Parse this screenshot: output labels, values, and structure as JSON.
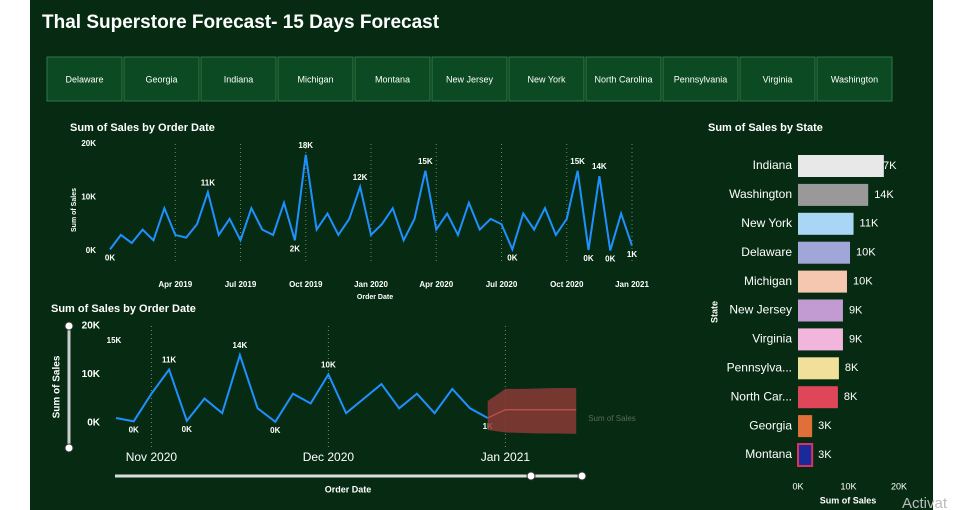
{
  "header": {
    "title": "Thal Superstore Forecast- 15 Days Forecast"
  },
  "filters": [
    "Delaware",
    "Georgia",
    "Indiana",
    "Michigan",
    "Montana",
    "New Jersey",
    "New York",
    "North Carolina",
    "Pennsylvania",
    "Virginia",
    "Washington"
  ],
  "watermark": "Activat",
  "chart_data": [
    {
      "type": "line",
      "title": "Sum of Sales by Order Date",
      "x_label": "Order Date",
      "y_label": "Sum of Sales",
      "categories": [
        null,
        null,
        null,
        null,
        null,
        null,
        "Apr 2019",
        null,
        null,
        null,
        null,
        null,
        "Jul 2019",
        null,
        null,
        null,
        null,
        null,
        "Oct 2019",
        null,
        null,
        null,
        null,
        null,
        "Jan 2020",
        null,
        null,
        null,
        null,
        null,
        "Apr 2020",
        null,
        null,
        null,
        null,
        null,
        "Jul 2020",
        null,
        null,
        null,
        null,
        null,
        "Oct 2020",
        null,
        null,
        null,
        null,
        null,
        "Jan 2021"
      ],
      "series": [
        {
          "color": "#1e90ff",
          "values": [
            300,
            3000,
            1500,
            4000,
            2000,
            8000,
            3000,
            2500,
            5000,
            11000,
            3000,
            6000,
            2000,
            8000,
            4000,
            3000,
            9000,
            2000,
            18000,
            4000,
            7000,
            3000,
            6000,
            12000,
            3000,
            5000,
            8000,
            2000,
            6000,
            15000,
            4000,
            7000,
            3000,
            9000,
            4000,
            6000,
            5000,
            300,
            7000,
            4000,
            8000,
            3000,
            6000,
            15000,
            200,
            14000,
            100,
            7000,
            1000
          ],
          "value_labels": [
            "0K",
            null,
            null,
            null,
            null,
            null,
            null,
            null,
            null,
            "11K",
            null,
            null,
            null,
            null,
            null,
            null,
            null,
            "2K",
            "18K",
            null,
            null,
            null,
            null,
            "12K",
            null,
            null,
            null,
            null,
            null,
            "15K",
            null,
            null,
            null,
            null,
            null,
            null,
            null,
            "0K",
            null,
            null,
            null,
            null,
            null,
            "15K",
            "0K",
            "14K",
            "0K",
            null,
            "1K"
          ]
        }
      ],
      "ylim": [
        0,
        20000
      ],
      "yticks": [
        {
          "value": 0,
          "label": "0K"
        },
        {
          "value": 10000,
          "label": "10K"
        },
        {
          "value": 20000,
          "label": "20K"
        }
      ]
    },
    {
      "type": "line",
      "title": "Sum of Sales by Order Date",
      "x_label": "Order Date",
      "y_label": "Sum of Sales",
      "categories": [
        null,
        null,
        "Nov 2020",
        null,
        null,
        null,
        null,
        null,
        null,
        null,
        null,
        null,
        "Dec 2020",
        null,
        null,
        null,
        null,
        null,
        null,
        null,
        null,
        null,
        "Jan 2021",
        null,
        null,
        null,
        null
      ],
      "series": [
        {
          "color": "#1e90ff",
          "values": [
            1000,
            300,
            6000,
            11000,
            400,
            5000,
            2000,
            14000,
            3000,
            200,
            6000,
            4000,
            10000,
            2000,
            5000,
            8000,
            3000,
            6000,
            2000,
            7000,
            3000,
            1000,
            null,
            null,
            null,
            null,
            null
          ],
          "value_labels": [
            null,
            "0K",
            null,
            "11K",
            "0K",
            null,
            null,
            "14K",
            null,
            "0K",
            null,
            null,
            "10K",
            null,
            null,
            null,
            null,
            null,
            null,
            null,
            null,
            "1K",
            null,
            null,
            null,
            null,
            null
          ]
        },
        {
          "name": "Sum of Sales",
          "color": "#8b3a36",
          "values": [
            null,
            null,
            null,
            null,
            null,
            null,
            null,
            null,
            null,
            null,
            null,
            null,
            null,
            null,
            null,
            null,
            null,
            null,
            null,
            null,
            null,
            1000,
            2700,
            2700,
            2700,
            2700,
            2700
          ],
          "upper": [
            null,
            null,
            null,
            null,
            null,
            null,
            null,
            null,
            null,
            null,
            null,
            null,
            null,
            null,
            null,
            null,
            null,
            null,
            null,
            null,
            null,
            4500,
            7000,
            7000,
            7100,
            7200,
            7200
          ],
          "lower": [
            null,
            null,
            null,
            null,
            null,
            null,
            null,
            null,
            null,
            null,
            null,
            null,
            null,
            null,
            null,
            null,
            null,
            null,
            null,
            null,
            null,
            -1500,
            -2000,
            -2100,
            -2200,
            -2200,
            -2300
          ]
        }
      ],
      "annotations": [
        "15K"
      ],
      "ylim": [
        -5000,
        20000
      ],
      "yticks": [
        {
          "value": 0,
          "label": "0K"
        },
        {
          "value": 10000,
          "label": "10K"
        },
        {
          "value": 20000,
          "label": "20K"
        }
      ]
    },
    {
      "type": "bar",
      "orientation": "horizontal",
      "title": "Sum of Sales by State",
      "x_label": "Sum of Sales",
      "y_label": "State",
      "categories": [
        "Indiana",
        "Washington",
        "New York",
        "Delaware",
        "Michigan",
        "New Jersey",
        "Virginia",
        "Pennsylva...",
        "North Car...",
        "Georgia",
        "Montana"
      ],
      "values": [
        17000,
        13900,
        11000,
        10300,
        9700,
        8900,
        8900,
        8100,
        7900,
        2800,
        2800
      ],
      "value_labels": [
        "17K",
        "14K",
        "11K",
        "10K",
        "10K",
        "9K",
        "9K",
        "8K",
        "8K",
        "3K",
        "3K"
      ],
      "colors": [
        "#e8e8e8",
        "#999999",
        "#a9d6f5",
        "#a0a6d8",
        "#f5c6b0",
        "#c39bd3",
        "#f2b6dc",
        "#f0e09a",
        "#e0465a",
        "#e0703a",
        "#1a2a9a"
      ],
      "xlim": [
        0,
        20000
      ],
      "xticks": [
        {
          "value": 0,
          "label": "0K"
        },
        {
          "value": 10000,
          "label": "10K"
        },
        {
          "value": 20000,
          "label": "20K"
        }
      ]
    }
  ]
}
